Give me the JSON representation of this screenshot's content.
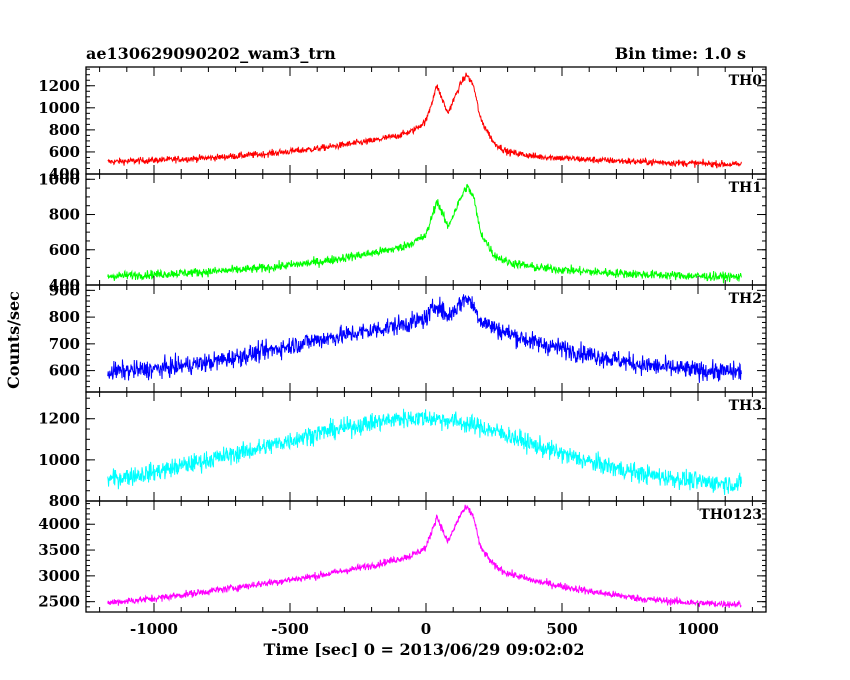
{
  "header": {
    "left": "ae130629090202_wam3_trn",
    "right": "Bin time: 1.0 s"
  },
  "chart_data": {
    "type": "line",
    "title": "ae130629090202_wam3_trn",
    "bin_time_label": "Bin time: 1.0 s",
    "xlabel": "Time [sec] 0 = 2013/06/29 09:02:02",
    "ylabel": "Counts/sec",
    "xlim": [
      -1250,
      1250
    ],
    "x_range": [
      -1170,
      1160
    ],
    "x_ticks": [
      -1000,
      -500,
      0,
      500,
      1000
    ],
    "grid": false,
    "panels": [
      {
        "name": "TH0",
        "color": "#ff0000",
        "ylim": [
          400,
          1370
        ],
        "y_ticks": [
          400,
          600,
          800,
          1000,
          1200
        ],
        "x": [
          -1170,
          -1000,
          -800,
          -600,
          -400,
          -200,
          -100,
          -50,
          0,
          40,
          80,
          130,
          150,
          175,
          200,
          250,
          300,
          400,
          600,
          800,
          1000,
          1160
        ],
        "y": [
          510,
          525,
          545,
          580,
          630,
          700,
          750,
          790,
          880,
          1200,
          950,
          1230,
          1300,
          1200,
          900,
          680,
          600,
          560,
          530,
          510,
          495,
          485
        ],
        "noise": 30
      },
      {
        "name": "TH1",
        "color": "#00ff00",
        "ylim": [
          400,
          1030
        ],
        "y_ticks": [
          400,
          600,
          800,
          1000
        ],
        "x": [
          -1170,
          -1000,
          -800,
          -600,
          -400,
          -200,
          -100,
          -50,
          0,
          40,
          80,
          130,
          150,
          175,
          200,
          250,
          300,
          400,
          600,
          800,
          1000,
          1160
        ],
        "y": [
          450,
          460,
          475,
          495,
          530,
          580,
          610,
          640,
          680,
          880,
          730,
          900,
          960,
          900,
          700,
          570,
          530,
          500,
          475,
          460,
          450,
          445
        ],
        "noise": 25
      },
      {
        "name": "TH2",
        "color": "#0000ff",
        "ylim": [
          520,
          920
        ],
        "y_ticks": [
          600,
          700,
          800,
          900
        ],
        "x": [
          -1170,
          -1000,
          -800,
          -600,
          -400,
          -200,
          -100,
          -50,
          0,
          40,
          80,
          130,
          150,
          175,
          200,
          250,
          300,
          400,
          600,
          800,
          1000,
          1160
        ],
        "y": [
          595,
          605,
          630,
          670,
          715,
          750,
          770,
          780,
          795,
          850,
          800,
          855,
          875,
          840,
          790,
          760,
          740,
          705,
          660,
          620,
          600,
          595
        ],
        "noise": 35
      },
      {
        "name": "TH3",
        "color": "#00ffff",
        "ylim": [
          800,
          1330
        ],
        "y_ticks": [
          800,
          1000,
          1200
        ],
        "x": [
          -1170,
          -1000,
          -800,
          -600,
          -400,
          -200,
          -100,
          0,
          100,
          200,
          300,
          400,
          500,
          600,
          800,
          1000,
          1160
        ],
        "y": [
          905,
          940,
          1000,
          1060,
          1130,
          1180,
          1200,
          1205,
          1190,
          1160,
          1120,
          1070,
          1030,
          990,
          930,
          895,
          880
        ],
        "noise": 45
      },
      {
        "name": "TH0123",
        "color": "#ff00ff",
        "ylim": [
          2300,
          4450
        ],
        "y_ticks": [
          2500,
          3000,
          3500,
          4000
        ],
        "x": [
          -1170,
          -1000,
          -800,
          -600,
          -400,
          -200,
          -100,
          -50,
          0,
          40,
          80,
          130,
          150,
          175,
          200,
          250,
          300,
          400,
          600,
          800,
          1000,
          1160
        ],
        "y": [
          2480,
          2560,
          2700,
          2850,
          3000,
          3200,
          3330,
          3400,
          3550,
          4150,
          3650,
          4220,
          4320,
          4150,
          3550,
          3200,
          3050,
          2900,
          2700,
          2550,
          2470,
          2450
        ],
        "noise": 70
      }
    ]
  }
}
